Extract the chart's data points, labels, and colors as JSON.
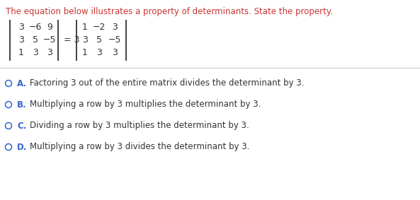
{
  "title": "The equation below illustrates a property of determinants. State the property.",
  "title_color": "#CC3333",
  "title_fontsize": 8.5,
  "matrix_left": [
    [
      "3",
      "−6",
      "9"
    ],
    [
      "3",
      "5",
      "−5"
    ],
    [
      "1",
      "3",
      "3"
    ]
  ],
  "matrix_right": [
    [
      "1",
      "−2",
      "3"
    ],
    [
      "3",
      "5",
      "−5"
    ],
    [
      "1",
      "3",
      "3"
    ]
  ],
  "equals_text": "= 3",
  "options": [
    {
      "label": "A.",
      "text": "Factoring 3 out of the entire matrix divides the determinant by 3."
    },
    {
      "label": "B.",
      "text": "Multiplying a row by 3 multiplies the determinant by 3."
    },
    {
      "label": "C.",
      "text": "Dividing a row by 3 multiplies the determinant by 3."
    },
    {
      "label": "D.",
      "text": "Multiplying a row by 3 divides the determinant by 3."
    }
  ],
  "option_label_color": "#3366CC",
  "option_text_color": "#333333",
  "background_color": "#FFFFFF",
  "matrix_text_color": "#333333",
  "matrix_fontsize": 9.0,
  "option_fontsize": 8.5,
  "separator_color": "#CCCCCC",
  "circle_color": "#3366CC"
}
